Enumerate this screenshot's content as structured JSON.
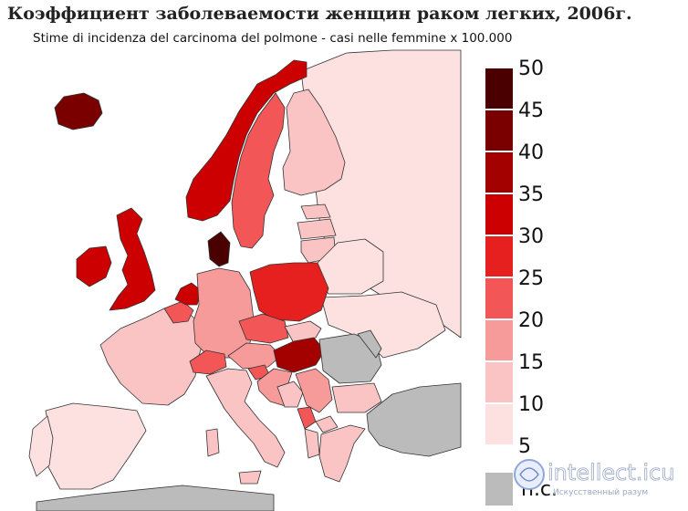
{
  "title": "Коэффициент заболеваемости женщин раком легких, 2006г.",
  "subtitle": "Stime di incidenza del carcinoma del polmone - casi nelle femmine x 100.000",
  "legend": {
    "ticks": [
      "50",
      "45",
      "40",
      "35",
      "30",
      "25",
      "20",
      "15",
      "10",
      "5"
    ],
    "colors": [
      "#4a0000",
      "#7a0000",
      "#a30000",
      "#cc0000",
      "#e61f1f",
      "#f25656",
      "#f79a9a",
      "#fbc4c4",
      "#fde0e0",
      "#ffeeee"
    ],
    "no_data_label": "n.c.",
    "no_data_color": "#bbbbbb"
  },
  "colors": {
    "sea": "#ffffff",
    "border": "#333333",
    "nodata": "#bbbbbb"
  },
  "regions": [
    {
      "name": "Iceland",
      "value": 45
    },
    {
      "name": "Norway",
      "value": 35
    },
    {
      "name": "Sweden",
      "value": 22
    },
    {
      "name": "Finland",
      "value": 12
    },
    {
      "name": "Denmark",
      "value": 50
    },
    {
      "name": "United Kingdom",
      "value": 35
    },
    {
      "name": "Ireland",
      "value": 35
    },
    {
      "name": "Netherlands",
      "value": 35
    },
    {
      "name": "Belgium",
      "value": 22
    },
    {
      "name": "France",
      "value": 12
    },
    {
      "name": "Spain",
      "value": 7
    },
    {
      "name": "Portugal",
      "value": 7
    },
    {
      "name": "Germany",
      "value": 17
    },
    {
      "name": "Switzerland",
      "value": 22
    },
    {
      "name": "Austria",
      "value": 17
    },
    {
      "name": "Italy",
      "value": 12
    },
    {
      "name": "Poland",
      "value": 28
    },
    {
      "name": "Czech Republic",
      "value": 22
    },
    {
      "name": "Slovakia",
      "value": 12
    },
    {
      "name": "Hungary",
      "value": 40
    },
    {
      "name": "Slovenia",
      "value": 22
    },
    {
      "name": "Croatia",
      "value": 17
    },
    {
      "name": "Bosnia",
      "value": 12
    },
    {
      "name": "Serbia",
      "value": 17
    },
    {
      "name": "Montenegro",
      "value": 22
    },
    {
      "name": "Macedonia",
      "value": 12
    },
    {
      "name": "Albania",
      "value": 12
    },
    {
      "name": "Greece",
      "value": 12
    },
    {
      "name": "Bulgaria",
      "value": 12
    },
    {
      "name": "Romania",
      "value": null
    },
    {
      "name": "Moldova",
      "value": null
    },
    {
      "name": "Turkey",
      "value": null
    },
    {
      "name": "Estonia",
      "value": 12
    },
    {
      "name": "Latvia",
      "value": 12
    },
    {
      "name": "Lithuania",
      "value": 12
    },
    {
      "name": "Belarus",
      "value": 7
    },
    {
      "name": "Ukraine",
      "value": 7
    },
    {
      "name": "Russia",
      "value": 7
    }
  ],
  "watermark": {
    "brand": "intellect.icu",
    "tagline": "Искусственный разум"
  }
}
